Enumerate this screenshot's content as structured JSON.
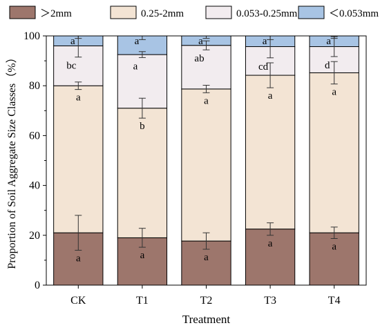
{
  "chart_data": {
    "type": "bar",
    "stacked": true,
    "categories": [
      "CK",
      "T1",
      "T2",
      "T3",
      "T4"
    ],
    "xlabel": "Treatment",
    "ylabel": "Proportion of Soil Aggregate Size Classes（%）",
    "ylim": [
      0,
      100
    ],
    "yticks": [
      0,
      20,
      40,
      60,
      80,
      100
    ],
    "grid": false,
    "legend_position": "top",
    "series": [
      {
        "name": "＞2mm",
        "color": "#9d766c",
        "values": [
          21,
          19,
          17.7,
          22.5,
          21
        ],
        "error": [
          7,
          3.8,
          3.3,
          2.5,
          2.3
        ],
        "letters": [
          "a",
          "a",
          "a",
          "a",
          "a"
        ]
      },
      {
        "name": "0.25-2mm",
        "color": "#f3e4d4",
        "values": [
          59,
          52,
          61,
          61.7,
          64.2
        ],
        "error": [
          1.5,
          4,
          1.5,
          5,
          4.5
        ],
        "letters": [
          "a",
          "b",
          "a",
          "a",
          "a"
        ]
      },
      {
        "name": "0.053-0.25mm",
        "color": "#f2ecef",
        "values": [
          16,
          21.5,
          17.5,
          11.5,
          10.5
        ],
        "error": [
          4.5,
          1.2,
          1.8,
          4.5,
          4
        ],
        "letters": [
          "bc",
          "a",
          "ab",
          "cd",
          "d"
        ]
      },
      {
        "name": "＜0.053mm",
        "color": "#a8c4e4",
        "values": [
          4,
          7.5,
          3.8,
          4.3,
          4.3
        ],
        "error": [
          1,
          1.5,
          1,
          1.5,
          1
        ],
        "letters": [
          "a",
          "a",
          "a",
          "a",
          "a"
        ]
      }
    ]
  }
}
